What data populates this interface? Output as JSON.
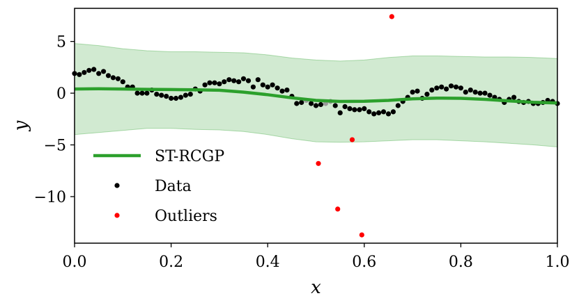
{
  "chart_data": {
    "type": "scatter",
    "title": "",
    "xlabel": "x",
    "ylabel": "y",
    "xlim": [
      0.0,
      1.0
    ],
    "ylim": [
      -14.5,
      8.2
    ],
    "x_ticks": [
      0.0,
      0.2,
      0.4,
      0.6,
      0.8,
      1.0
    ],
    "x_tick_labels": [
      "0.0",
      "0.2",
      "0.4",
      "0.6",
      "0.8",
      "1.0"
    ],
    "y_ticks": [
      5,
      0,
      -5,
      -10
    ],
    "y_tick_labels": [
      "5",
      "0",
      "−5",
      "−10"
    ],
    "grid": false,
    "legend_position": "lower-left",
    "legend": [
      {
        "label": "ST-RCGP",
        "kind": "line",
        "color": "#2ca02c"
      },
      {
        "label": "Data",
        "kind": "marker",
        "color": "#000000"
      },
      {
        "label": "Outliers",
        "kind": "marker",
        "color": "#ff0000"
      }
    ],
    "colors": {
      "band": "#2ca02c",
      "line": "#2ca02c",
      "data": "#000000",
      "outlier": "#ff0000",
      "occluded": "#9a9a9a"
    },
    "series": [
      {
        "name": "ST-RCGP",
        "kind": "line",
        "x": [
          0.0,
          0.05,
          0.1,
          0.15,
          0.2,
          0.25,
          0.3,
          0.35,
          0.4,
          0.45,
          0.5,
          0.55,
          0.6,
          0.65,
          0.7,
          0.75,
          0.8,
          0.85,
          0.9,
          0.95,
          1.0
        ],
        "y": [
          0.4,
          0.42,
          0.4,
          0.37,
          0.35,
          0.32,
          0.28,
          0.1,
          -0.15,
          -0.45,
          -0.7,
          -0.8,
          -0.78,
          -0.7,
          -0.55,
          -0.48,
          -0.5,
          -0.6,
          -0.75,
          -0.88,
          -0.95
        ]
      },
      {
        "name": "uncertainty band",
        "kind": "band",
        "x": [
          0.0,
          0.05,
          0.1,
          0.15,
          0.2,
          0.25,
          0.3,
          0.35,
          0.4,
          0.45,
          0.5,
          0.55,
          0.6,
          0.65,
          0.7,
          0.75,
          0.8,
          0.85,
          0.9,
          0.95,
          1.0
        ],
        "upper": [
          4.8,
          4.6,
          4.3,
          4.1,
          4.0,
          4.0,
          3.95,
          3.9,
          3.7,
          3.4,
          3.2,
          3.1,
          3.2,
          3.45,
          3.6,
          3.6,
          3.55,
          3.5,
          3.5,
          3.45,
          3.35
        ],
        "lower": [
          -4.0,
          -3.8,
          -3.6,
          -3.4,
          -3.4,
          -3.5,
          -3.55,
          -3.7,
          -4.0,
          -4.4,
          -4.7,
          -4.75,
          -4.7,
          -4.6,
          -4.5,
          -4.5,
          -4.6,
          -4.7,
          -4.85,
          -5.0,
          -5.2
        ]
      },
      {
        "name": "Data",
        "kind": "scatter",
        "x": [
          0.0,
          0.01,
          0.02,
          0.03,
          0.04,
          0.05,
          0.06,
          0.07,
          0.08,
          0.09,
          0.1,
          0.11,
          0.12,
          0.13,
          0.14,
          0.15,
          0.16,
          0.17,
          0.18,
          0.19,
          0.2,
          0.21,
          0.22,
          0.23,
          0.24,
          0.25,
          0.26,
          0.27,
          0.28,
          0.29,
          0.3,
          0.31,
          0.32,
          0.33,
          0.34,
          0.35,
          0.36,
          0.37,
          0.38,
          0.39,
          0.4,
          0.41,
          0.42,
          0.43,
          0.44,
          0.45,
          0.46,
          0.47,
          0.48,
          0.49,
          0.5,
          0.51,
          0.52,
          0.53,
          0.54,
          0.55,
          0.56,
          0.57,
          0.58,
          0.59,
          0.6,
          0.61,
          0.62,
          0.63,
          0.64,
          0.65,
          0.66,
          0.67,
          0.68,
          0.69,
          0.7,
          0.71,
          0.72,
          0.73,
          0.74,
          0.75,
          0.76,
          0.77,
          0.78,
          0.79,
          0.8,
          0.81,
          0.82,
          0.83,
          0.84,
          0.85,
          0.86,
          0.87,
          0.88,
          0.89,
          0.9,
          0.91,
          0.92,
          0.93,
          0.94,
          0.95,
          0.96,
          0.97,
          0.98,
          0.99,
          1.0
        ],
        "y": [
          1.9,
          1.8,
          2.0,
          2.2,
          2.3,
          1.9,
          2.1,
          1.7,
          1.5,
          1.4,
          1.1,
          0.6,
          0.6,
          0.0,
          0.0,
          0.0,
          0.3,
          -0.1,
          -0.2,
          -0.3,
          -0.5,
          -0.5,
          -0.4,
          -0.2,
          -0.1,
          0.4,
          0.2,
          0.8,
          1.0,
          1.0,
          0.9,
          1.1,
          1.3,
          1.2,
          1.1,
          1.4,
          1.2,
          0.6,
          1.3,
          0.8,
          0.6,
          0.8,
          0.5,
          0.2,
          0.3,
          -0.3,
          -1.0,
          -0.9,
          -0.7,
          -1.0,
          -1.2,
          -1.1,
          -1.0,
          -0.8,
          -1.2,
          -1.9,
          -1.3,
          -1.5,
          -1.6,
          -1.6,
          -1.5,
          -1.8,
          -2.0,
          -1.9,
          -1.8,
          -2.0,
          -1.8,
          -1.2,
          -0.8,
          -0.4,
          0.1,
          0.2,
          -0.5,
          -0.1,
          0.3,
          0.5,
          0.6,
          0.4,
          0.7,
          0.6,
          0.5,
          0.1,
          0.3,
          0.1,
          0.0,
          0.0,
          -0.2,
          -0.4,
          -0.6,
          -0.9,
          -0.6,
          -0.4,
          -0.8,
          -0.9,
          -0.8,
          -1.0,
          -1.0,
          -0.9,
          -0.7,
          -0.8,
          -1.0
        ]
      },
      {
        "name": "Outliers",
        "kind": "scatter",
        "x": [
          0.505,
          0.545,
          0.575,
          0.595,
          0.657
        ],
        "y": [
          -6.8,
          -11.2,
          -4.5,
          -13.7,
          7.4
        ]
      }
    ]
  }
}
